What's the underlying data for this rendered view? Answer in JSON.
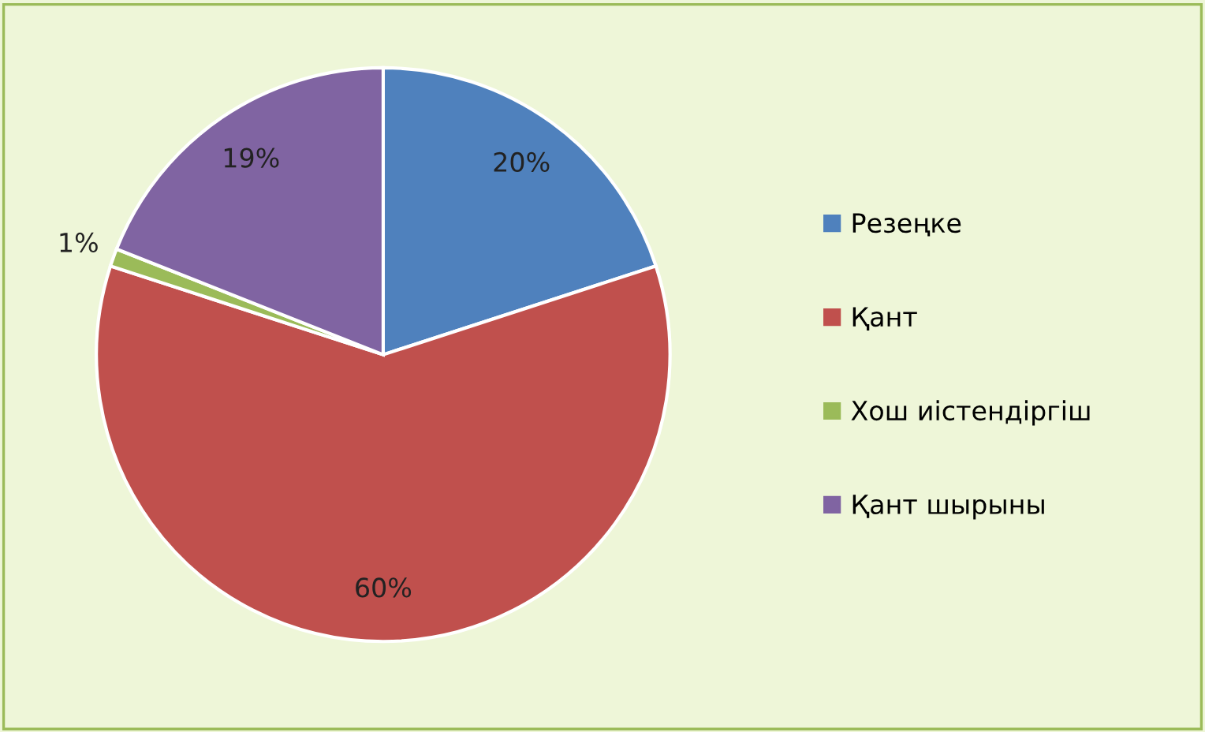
{
  "chart_data": {
    "type": "pie",
    "categories": [
      "Резеңке",
      "Қант",
      "Хош иістендіргіш",
      "Қант шырыны"
    ],
    "values": [
      20,
      60,
      1,
      19
    ],
    "colors": [
      "#4f81bd",
      "#c0504d",
      "#9bbb59",
      "#8064a2"
    ],
    "value_labels": [
      "20%",
      "60%",
      "1%",
      "19%"
    ],
    "legend": "right"
  }
}
